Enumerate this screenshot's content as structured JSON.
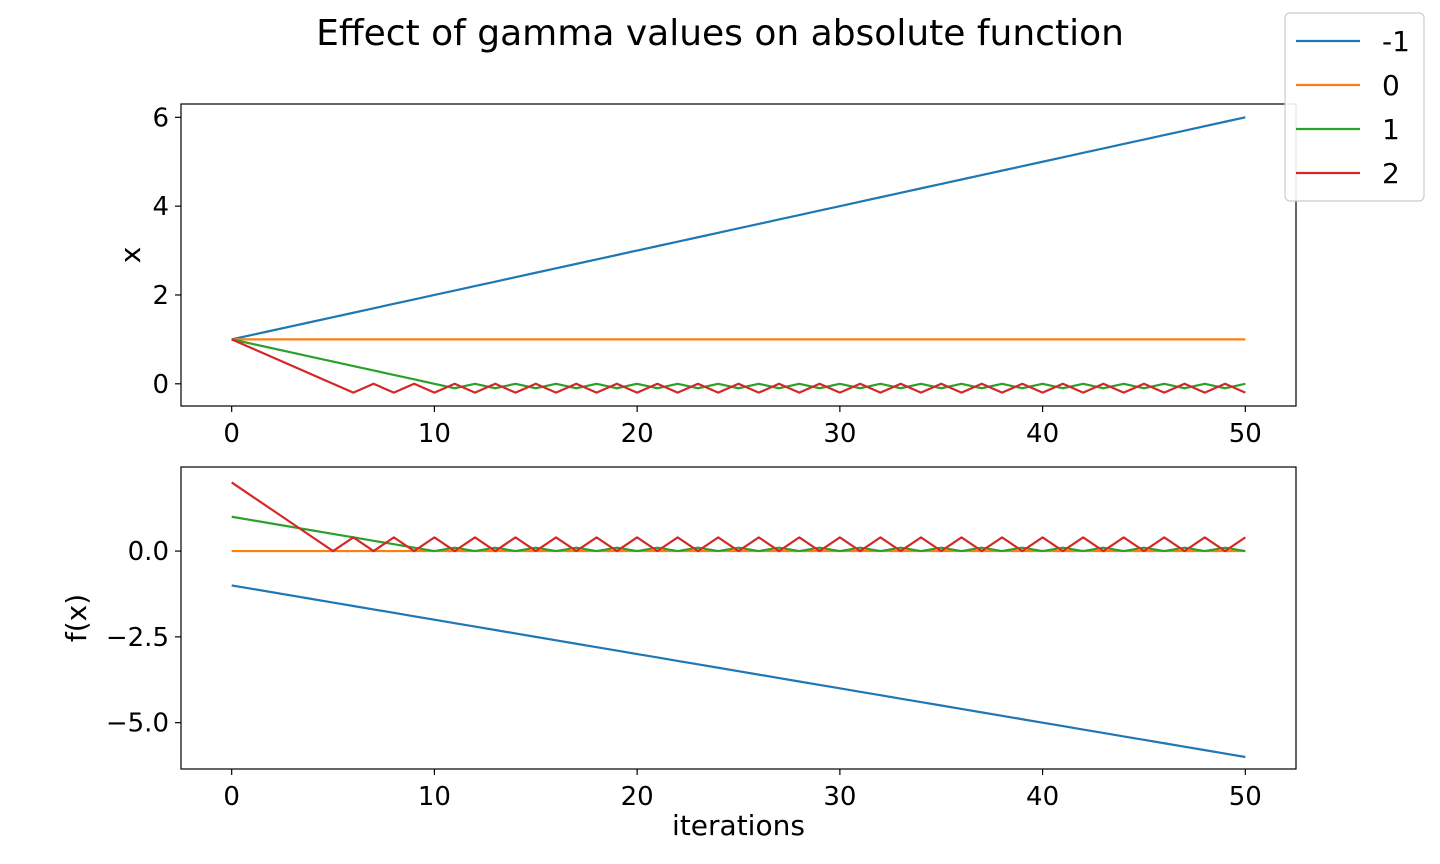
{
  "figure": {
    "title": "Effect of gamma values on absolute function"
  },
  "legend": {
    "placement": "top-right",
    "entries": [
      "-1",
      "0",
      "1",
      "2"
    ]
  },
  "colors": {
    "-1": "#1f77b4",
    "0": "#ff7f0e",
    "1": "#2ca02c",
    "2": "#d62728"
  },
  "chart_data": [
    {
      "type": "line",
      "title": "",
      "xlabel": "",
      "ylabel": "x",
      "xlim": [
        -2.5,
        52.5
      ],
      "ylim": [
        -0.5,
        6.3
      ],
      "xticks": [
        0,
        10,
        20,
        30,
        40,
        50
      ],
      "xtick_labels": [
        "0",
        "10",
        "20",
        "30",
        "40",
        "50"
      ],
      "yticks": [
        0,
        2,
        4,
        6
      ],
      "ytick_labels": [
        "0",
        "2",
        "4",
        "6"
      ],
      "grid": false,
      "series": [
        {
          "name": "-1",
          "formula": "x = 1 + 0.1*i",
          "x_range": [
            0,
            50
          ]
        },
        {
          "name": "0",
          "formula": "x = 1",
          "x_range": [
            0,
            50
          ]
        },
        {
          "name": "1",
          "formula": "x = 1 - 0.1*i until 11, then oscillates between 0 and -0.1",
          "x_range": [
            0,
            50
          ]
        },
        {
          "name": "2",
          "formula": "x = 1 - 0.2*i until 6, then oscillates between 0 and -0.2",
          "x_range": [
            0,
            50
          ]
        }
      ]
    },
    {
      "type": "line",
      "title": "",
      "xlabel": "iterations",
      "ylabel": "f(x)",
      "xlim": [
        -2.5,
        52.5
      ],
      "ylim": [
        -6.35,
        2.45
      ],
      "xticks": [
        0,
        10,
        20,
        30,
        40,
        50
      ],
      "xtick_labels": [
        "0",
        "10",
        "20",
        "30",
        "40",
        "50"
      ],
      "yticks": [
        0,
        -2.5,
        -5
      ],
      "ytick_labels": [
        "0.0",
        "−2.5",
        "−5.0"
      ],
      "grid": false,
      "series": [
        {
          "name": "-1",
          "formula": "f = -1 * |x|",
          "x_range": [
            0,
            50
          ]
        },
        {
          "name": "0",
          "formula": "f = 0",
          "x_range": [
            0,
            50
          ]
        },
        {
          "name": "1",
          "formula": "f = 1 * |x|",
          "x_range": [
            0,
            50
          ]
        },
        {
          "name": "2",
          "formula": "f = 2 * |x|",
          "x_range": [
            0,
            50
          ]
        }
      ]
    }
  ]
}
